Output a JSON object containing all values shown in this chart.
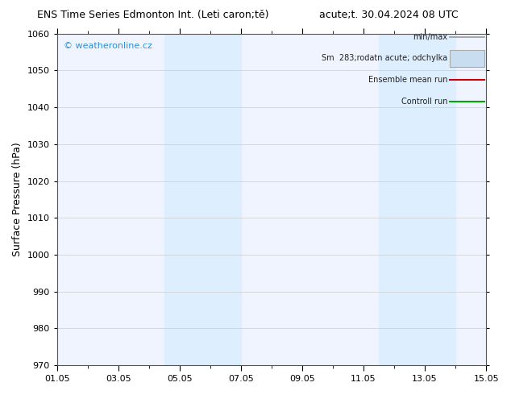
{
  "title_left": "ENS Time Series Edmonton Int. (Leti caron;tě)",
  "title_right": "acute;t. 30.04.2024 08 UTC",
  "ylabel": "Surface Pressure (hPa)",
  "ylim": [
    970,
    1060
  ],
  "yticks": [
    970,
    980,
    990,
    1000,
    1010,
    1020,
    1030,
    1040,
    1050,
    1060
  ],
  "xtick_labels": [
    "01.05",
    "03.05",
    "05.05",
    "07.05",
    "09.05",
    "11.05",
    "13.05",
    "15.05"
  ],
  "xtick_positions": [
    0,
    2,
    4,
    6,
    8,
    10,
    12,
    14
  ],
  "xlim": [
    0,
    14
  ],
  "shaded_bands": [
    {
      "x_start": 3.5,
      "x_end": 4.5,
      "color": "#ddeeff",
      "alpha": 1.0
    },
    {
      "x_start": 4.5,
      "x_end": 6.0,
      "color": "#ddeeff",
      "alpha": 1.0
    },
    {
      "x_start": 10.5,
      "x_end": 11.5,
      "color": "#ddeeff",
      "alpha": 1.0
    },
    {
      "x_start": 11.5,
      "x_end": 13.0,
      "color": "#ddeeff",
      "alpha": 1.0
    }
  ],
  "watermark": "© weatheronline.cz",
  "watermark_color": "#3090d0",
  "bg_color": "#ffffff",
  "plot_bg_color": "#f0f4ff",
  "grid_color": "#cccccc",
  "title_fontsize": 9,
  "tick_fontsize": 8,
  "ylabel_fontsize": 9,
  "legend_label_min_max": "min/max",
  "legend_label_std": "Sm  283;rodatn acute; odchylka",
  "legend_label_mean": "Ensemble mean run",
  "legend_label_ctrl": "Controll run",
  "legend_color_min_max": "#999999",
  "legend_color_std": "#c8ddf0",
  "legend_color_mean": "#cc0000",
  "legend_color_ctrl": "#00aa00"
}
